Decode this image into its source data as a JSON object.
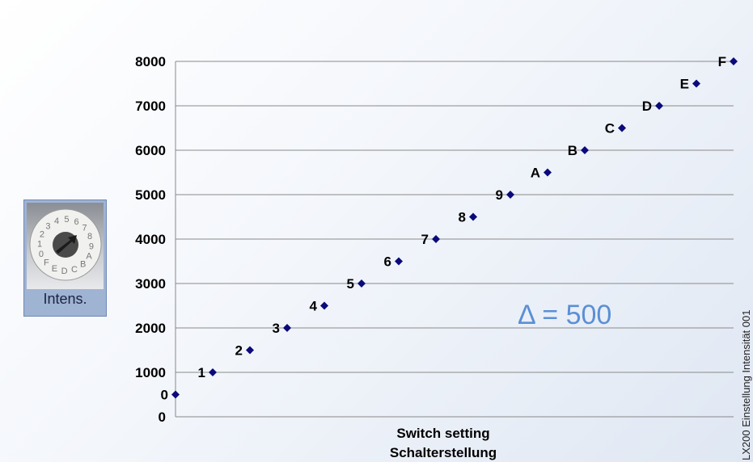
{
  "chart_data": {
    "type": "scatter",
    "x_categories": [
      "0",
      "1",
      "2",
      "3",
      "4",
      "5",
      "6",
      "7",
      "8",
      "9",
      "A",
      "B",
      "C",
      "D",
      "E",
      "F"
    ],
    "values": [
      500,
      1000,
      1500,
      2000,
      2500,
      3000,
      3500,
      4000,
      4500,
      5000,
      5500,
      6000,
      6500,
      7000,
      7500,
      8000
    ],
    "point_labels": [
      "0",
      "1",
      "2",
      "3",
      "4",
      "5",
      "6",
      "7",
      "8",
      "9",
      "A",
      "B",
      "C",
      "D",
      "E",
      "F"
    ],
    "y_ticks": [
      0,
      1000,
      2000,
      3000,
      4000,
      5000,
      6000,
      7000,
      8000
    ],
    "y_tick_labels": [
      "0",
      "1000",
      "2000",
      "3000",
      "4000",
      "5000",
      "6000",
      "7000",
      "8000"
    ],
    "ylim": [
      0,
      8000
    ],
    "grid": true,
    "marker": "diamond",
    "marker_color": "#0a0a7a",
    "xlabel_line1": "Switch setting",
    "xlabel_line2": "Schalterstellung",
    "annotation": "Δ = 500",
    "annotation_color": "#5b8fd6"
  },
  "side_note": "LX200 Einstellung Intensität 001",
  "dial": {
    "caption": "Intens.",
    "dial_digits": [
      "0",
      "1",
      "2",
      "3",
      "4",
      "5",
      "6",
      "7",
      "8",
      "9",
      "A",
      "B",
      "C",
      "D",
      "E",
      "F"
    ]
  }
}
